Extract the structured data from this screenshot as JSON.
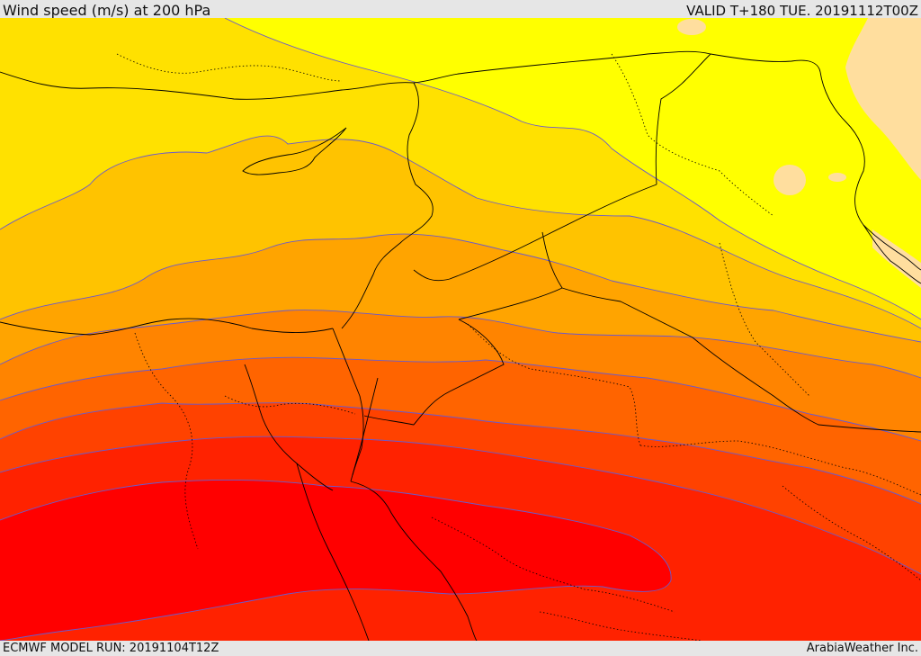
{
  "header": {
    "title": "Wind speed (m/s) at 200 hPa",
    "valid": "VALID T+180 TUE. 20191112T00Z"
  },
  "footer": {
    "model_run": "ECMWF MODEL RUN: 20191104T12Z",
    "brand": "ArabiaWeather Inc."
  },
  "colors": {
    "band_0": "#ffde9e",
    "band_1": "#ffff00",
    "band_2": "#ffe100",
    "band_3": "#ffc300",
    "band_4": "#ffa400",
    "band_5": "#ff8400",
    "band_6": "#ff6400",
    "band_7": "#ff4200",
    "band_8": "#ff2200",
    "band_9": "#ff0000",
    "contour": "#6a5acd",
    "border": "#000000"
  }
}
